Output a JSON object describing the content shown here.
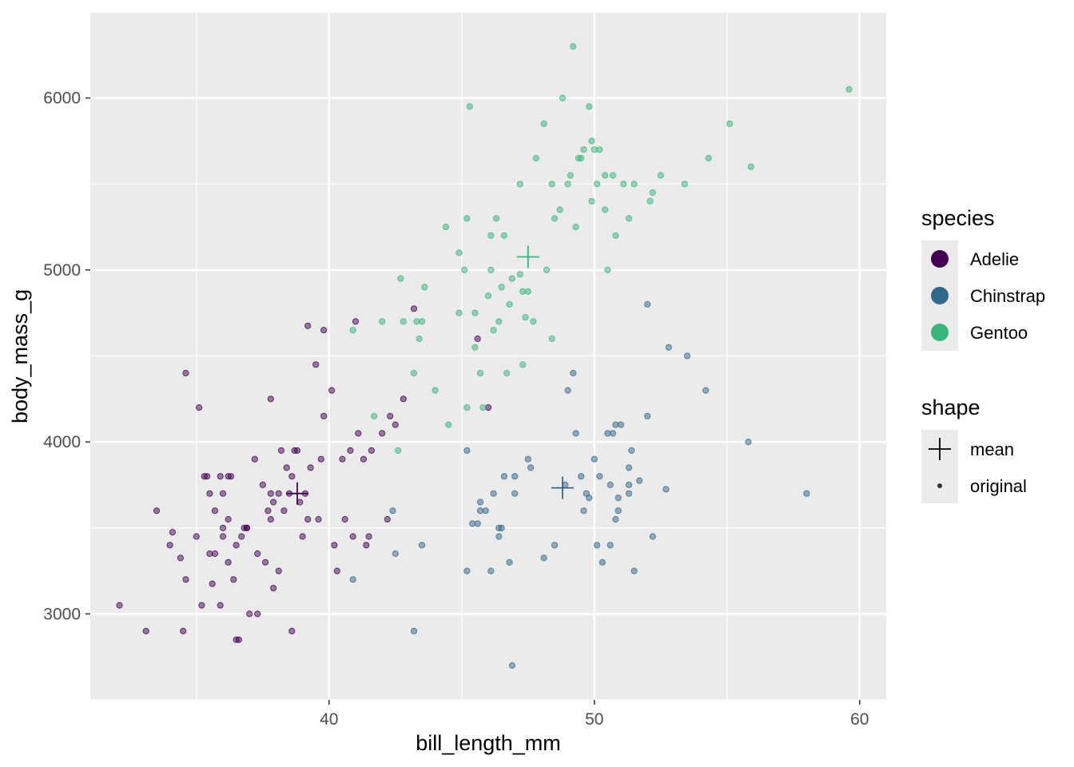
{
  "chart_data": {
    "type": "scatter",
    "xlabel": "bill_length_mm",
    "ylabel": "body_mass_g",
    "xlim": [
      31.0,
      61.0
    ],
    "ylim": [
      2500,
      6500
    ],
    "x_ticks": [
      40,
      50,
      60
    ],
    "y_ticks": [
      3000,
      4000,
      5000,
      6000
    ],
    "grid": true,
    "legend_placement": "right",
    "colors": {
      "Adelie": "#440154",
      "Chinstrap": "#31688e",
      "Gentoo": "#35b779"
    },
    "legends": [
      {
        "title": "species",
        "entries": [
          {
            "label": "Adelie",
            "color": "#440154"
          },
          {
            "label": "Chinstrap",
            "color": "#31688e"
          },
          {
            "label": "Gentoo",
            "color": "#35b779"
          }
        ]
      },
      {
        "title": "shape",
        "entries": [
          {
            "label": "mean",
            "shape": "plus"
          },
          {
            "label": "original",
            "shape": "dot"
          }
        ]
      }
    ],
    "means": [
      {
        "species": "Adelie",
        "x": 38.8,
        "y": 3700
      },
      {
        "species": "Chinstrap",
        "x": 48.8,
        "y": 3733
      },
      {
        "species": "Gentoo",
        "x": 47.5,
        "y": 5076
      }
    ],
    "series": [
      {
        "name": "Adelie",
        "points": [
          [
            32.1,
            3050
          ],
          [
            33.1,
            2900
          ],
          [
            33.5,
            3600
          ],
          [
            34.0,
            3400
          ],
          [
            34.1,
            3475
          ],
          [
            34.4,
            3325
          ],
          [
            34.5,
            2900
          ],
          [
            34.6,
            3200
          ],
          [
            34.6,
            4400
          ],
          [
            35.0,
            3450
          ],
          [
            35.1,
            4200
          ],
          [
            35.2,
            3050
          ],
          [
            35.3,
            3800
          ],
          [
            35.5,
            3350
          ],
          [
            35.5,
            3700
          ],
          [
            35.6,
            3175
          ],
          [
            35.7,
            3350
          ],
          [
            35.7,
            3600
          ],
          [
            35.9,
            3050
          ],
          [
            35.9,
            3800
          ],
          [
            36.0,
            3450
          ],
          [
            36.0,
            3500
          ],
          [
            36.0,
            3700
          ],
          [
            36.2,
            3300
          ],
          [
            36.2,
            3550
          ],
          [
            36.2,
            3800
          ],
          [
            36.4,
            3200
          ],
          [
            36.5,
            3400
          ],
          [
            36.5,
            2850
          ],
          [
            36.6,
            2850
          ],
          [
            36.7,
            3450
          ],
          [
            36.8,
            3500
          ],
          [
            36.9,
            3500
          ],
          [
            37.0,
            3000
          ],
          [
            37.2,
            3900
          ],
          [
            37.3,
            3000
          ],
          [
            37.3,
            3350
          ],
          [
            37.5,
            3750
          ],
          [
            37.6,
            3300
          ],
          [
            37.7,
            3600
          ],
          [
            37.8,
            3700
          ],
          [
            37.8,
            4250
          ],
          [
            37.9,
            3150
          ],
          [
            38.1,
            3700
          ],
          [
            38.1,
            3250
          ],
          [
            38.2,
            3950
          ],
          [
            38.3,
            3600
          ],
          [
            38.5,
            3700
          ],
          [
            38.6,
            2900
          ],
          [
            38.6,
            3800
          ],
          [
            38.8,
            3950
          ],
          [
            38.9,
            3650
          ],
          [
            39.0,
            3450
          ],
          [
            39.1,
            3700
          ],
          [
            39.2,
            4675
          ],
          [
            39.3,
            3850
          ],
          [
            39.5,
            4450
          ],
          [
            39.6,
            3550
          ],
          [
            39.7,
            3900
          ],
          [
            39.8,
            4650
          ],
          [
            40.2,
            3400
          ],
          [
            40.3,
            3250
          ],
          [
            40.6,
            3550
          ],
          [
            40.8,
            3950
          ],
          [
            41.1,
            4050
          ],
          [
            41.4,
            3400
          ],
          [
            41.5,
            3450
          ],
          [
            41.6,
            3950
          ],
          [
            42.0,
            4050
          ],
          [
            42.2,
            3550
          ],
          [
            42.5,
            4100
          ],
          [
            42.8,
            4250
          ],
          [
            43.2,
            4775
          ],
          [
            45.6,
            4600
          ],
          [
            46.0,
            4200
          ],
          [
            38.4,
            3850
          ],
          [
            37.8,
            3550
          ],
          [
            36.3,
            3800
          ],
          [
            39.8,
            4150
          ],
          [
            40.1,
            4300
          ],
          [
            40.5,
            3900
          ],
          [
            41.0,
            4700
          ],
          [
            38.7,
            3950
          ],
          [
            37.9,
            3650
          ],
          [
            36.9,
            3500
          ],
          [
            39.2,
            3550
          ],
          [
            40.9,
            3450
          ],
          [
            41.3,
            3900
          ],
          [
            42.3,
            4150
          ],
          [
            35.4,
            3800
          ]
        ]
      },
      {
        "name": "Chinstrap",
        "points": [
          [
            40.9,
            3200
          ],
          [
            42.4,
            3600
          ],
          [
            42.5,
            3350
          ],
          [
            43.2,
            2900
          ],
          [
            43.5,
            3400
          ],
          [
            45.2,
            3950
          ],
          [
            45.2,
            3250
          ],
          [
            45.4,
            3525
          ],
          [
            45.6,
            3525
          ],
          [
            45.7,
            3650
          ],
          [
            45.9,
            3600
          ],
          [
            46.1,
            3250
          ],
          [
            46.2,
            3700
          ],
          [
            46.4,
            3450
          ],
          [
            46.4,
            3500
          ],
          [
            46.6,
            3800
          ],
          [
            46.8,
            3300
          ],
          [
            46.9,
            2700
          ],
          [
            47.0,
            3700
          ],
          [
            47.5,
            3900
          ],
          [
            47.6,
            3850
          ],
          [
            48.1,
            3325
          ],
          [
            48.5,
            3400
          ],
          [
            49.0,
            4300
          ],
          [
            49.2,
            4400
          ],
          [
            49.3,
            4050
          ],
          [
            49.5,
            3800
          ],
          [
            49.6,
            3600
          ],
          [
            49.7,
            3700
          ],
          [
            50.0,
            3900
          ],
          [
            50.1,
            3400
          ],
          [
            50.2,
            3800
          ],
          [
            50.3,
            3300
          ],
          [
            50.5,
            4050
          ],
          [
            50.6,
            3400
          ],
          [
            50.7,
            4050
          ],
          [
            50.8,
            3550
          ],
          [
            50.8,
            4100
          ],
          [
            50.9,
            3675
          ],
          [
            51.0,
            4100
          ],
          [
            51.3,
            3700
          ],
          [
            51.3,
            3750
          ],
          [
            51.4,
            3950
          ],
          [
            51.5,
            3250
          ],
          [
            51.7,
            3775
          ],
          [
            52.0,
            4150
          ],
          [
            52.0,
            4800
          ],
          [
            52.2,
            3450
          ],
          [
            52.7,
            3725
          ],
          [
            52.8,
            4550
          ],
          [
            53.5,
            4500
          ],
          [
            54.2,
            4300
          ],
          [
            55.8,
            4000
          ],
          [
            58.0,
            3700
          ],
          [
            49.8,
            3675
          ],
          [
            50.6,
            3750
          ],
          [
            46.5,
            3500
          ],
          [
            47.0,
            3800
          ],
          [
            45.7,
            3600
          ],
          [
            51.3,
            3850
          ],
          [
            50.9,
            3600
          ],
          [
            48.9,
            3750
          ]
        ]
      },
      {
        "name": "Gentoo",
        "points": [
          [
            40.9,
            4650
          ],
          [
            41.7,
            4150
          ],
          [
            42.0,
            4700
          ],
          [
            42.6,
            3950
          ],
          [
            42.7,
            4950
          ],
          [
            42.8,
            4700
          ],
          [
            43.2,
            4400
          ],
          [
            43.3,
            4700
          ],
          [
            43.4,
            4600
          ],
          [
            43.6,
            4900
          ],
          [
            44.0,
            4300
          ],
          [
            44.4,
            5250
          ],
          [
            44.5,
            4100
          ],
          [
            44.9,
            4750
          ],
          [
            45.1,
            5000
          ],
          [
            45.2,
            5300
          ],
          [
            45.5,
            4750
          ],
          [
            45.7,
            4400
          ],
          [
            46.1,
            5000
          ],
          [
            46.2,
            4650
          ],
          [
            46.3,
            5300
          ],
          [
            46.4,
            4700
          ],
          [
            46.5,
            4900
          ],
          [
            46.6,
            5200
          ],
          [
            46.7,
            4400
          ],
          [
            46.8,
            4800
          ],
          [
            47.2,
            4975
          ],
          [
            47.3,
            4875
          ],
          [
            47.4,
            4725
          ],
          [
            47.5,
            4875
          ],
          [
            47.7,
            4700
          ],
          [
            47.8,
            5650
          ],
          [
            48.2,
            5000
          ],
          [
            48.4,
            4600
          ],
          [
            48.5,
            5300
          ],
          [
            48.7,
            5350
          ],
          [
            48.8,
            6000
          ],
          [
            49.0,
            5500
          ],
          [
            49.1,
            5550
          ],
          [
            49.2,
            6300
          ],
          [
            49.4,
            5650
          ],
          [
            49.5,
            5650
          ],
          [
            49.6,
            5700
          ],
          [
            49.8,
            5950
          ],
          [
            49.9,
            5400
          ],
          [
            50.0,
            5700
          ],
          [
            50.1,
            5500
          ],
          [
            50.2,
            5700
          ],
          [
            50.4,
            5550
          ],
          [
            50.5,
            5000
          ],
          [
            50.7,
            5550
          ],
          [
            50.8,
            5200
          ],
          [
            51.1,
            5500
          ],
          [
            51.3,
            5300
          ],
          [
            51.5,
            5500
          ],
          [
            52.1,
            5400
          ],
          [
            52.2,
            5450
          ],
          [
            52.5,
            5550
          ],
          [
            53.4,
            5500
          ],
          [
            54.3,
            5650
          ],
          [
            55.1,
            5850
          ],
          [
            55.9,
            5600
          ],
          [
            59.6,
            6050
          ],
          [
            45.3,
            5950
          ],
          [
            45.8,
            4200
          ],
          [
            46.1,
            5200
          ],
          [
            47.2,
            5500
          ],
          [
            48.1,
            5850
          ],
          [
            44.9,
            5100
          ],
          [
            45.5,
            4550
          ],
          [
            46.0,
            4850
          ],
          [
            47.3,
            4450
          ],
          [
            49.3,
            5250
          ],
          [
            50.4,
            5350
          ],
          [
            46.9,
            4950
          ],
          [
            48.4,
            5500
          ],
          [
            49.9,
            5750
          ],
          [
            45.2,
            4200
          ],
          [
            43.5,
            4700
          ]
        ]
      }
    ]
  }
}
